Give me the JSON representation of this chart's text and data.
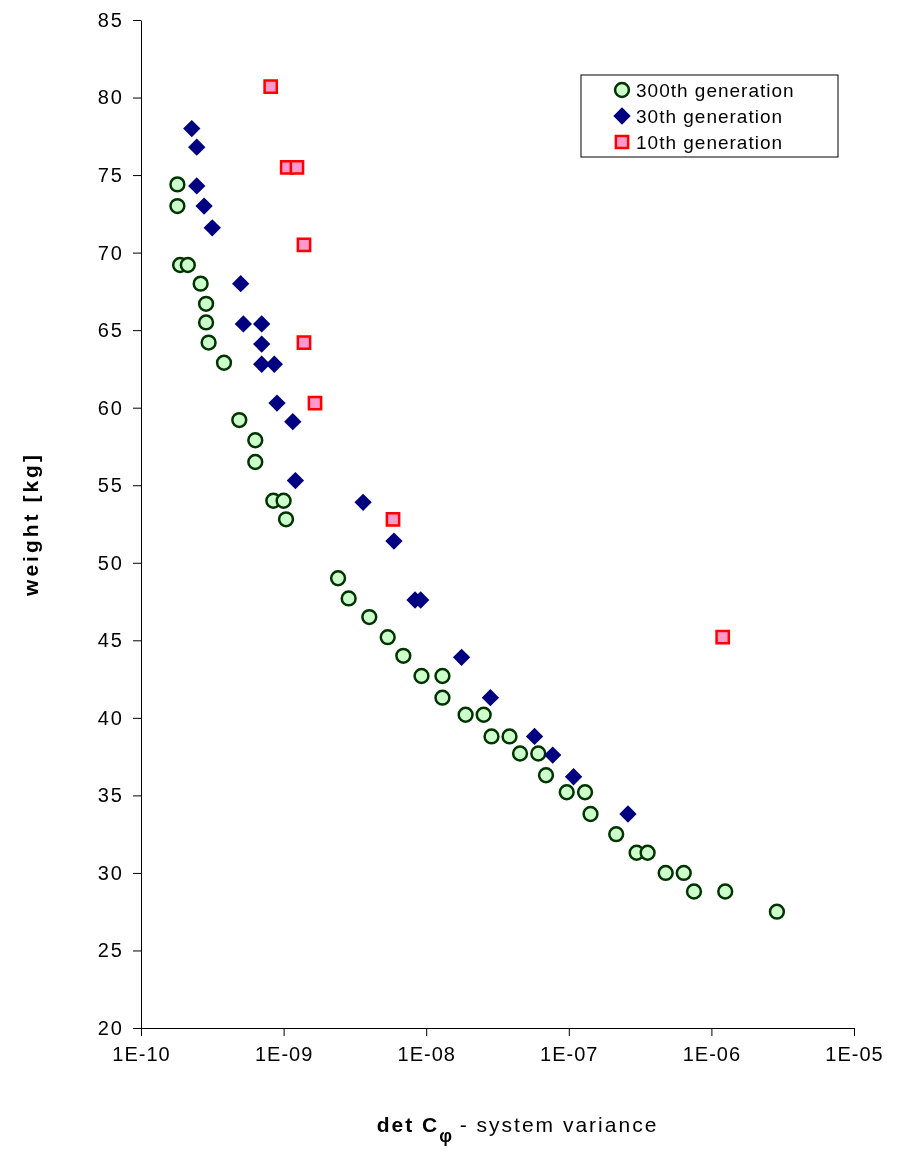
{
  "chart_data": {
    "type": "scatter",
    "xlabel": "det C$_{φ}$ - system variance",
    "ylabel": "weight [kg]",
    "log": "x",
    "xlim": [
      1e-10,
      1e-05
    ],
    "ylim": [
      20,
      85
    ],
    "xticks": [
      {
        "value": 1e-10,
        "label": "1E-10"
      },
      {
        "value": 1e-09,
        "label": "1E-09"
      },
      {
        "value": 1e-08,
        "label": "1E-08"
      },
      {
        "value": 1e-07,
        "label": "1E-07"
      },
      {
        "value": 1e-06,
        "label": "1E-06"
      },
      {
        "value": 1e-05,
        "label": "1E-05"
      }
    ],
    "yticks": [
      20,
      25,
      30,
      35,
      40,
      45,
      50,
      55,
      60,
      65,
      70,
      75,
      80,
      85
    ],
    "grid": false,
    "legend": "top right",
    "series": [
      {
        "name": "300th generation",
        "color": "#ccffcc",
        "marker": "circle",
        "x": [
          1.8e-10,
          1.8e-10,
          1.88e-10,
          2.13e-10,
          2.62e-10,
          2.86e-10,
          2.86e-10,
          2.98e-10,
          3.82e-10,
          4.89e-10,
          6.33e-10,
          6.33e-10,
          8.47e-10,
          1e-09,
          1.04e-09,
          2.41e-09,
          2.86e-09,
          3.99e-09,
          5.37e-09,
          6.91e-09,
          9.27e-09,
          1.3e-08,
          1.3e-08,
          1.89e-08,
          2.53e-08,
          2.87e-08,
          3.84e-08,
          4.55e-08,
          6.11e-08,
          6.92e-08,
          9.67e-08,
          1.3e-07,
          1.42e-07,
          2.15e-07,
          2.99e-07,
          3.57e-07,
          4.78e-07,
          6.4e-07,
          7.55e-07,
          1.25e-06,
          2.88e-06
        ],
        "values": [
          74.4,
          73.0,
          69.2,
          69.2,
          68.0,
          66.7,
          65.5,
          64.2,
          62.9,
          59.2,
          57.9,
          56.5,
          54.0,
          54.0,
          52.8,
          49.0,
          47.7,
          46.5,
          45.2,
          44.0,
          42.7,
          42.7,
          41.3,
          40.2,
          40.2,
          38.8,
          38.8,
          37.7,
          37.7,
          36.3,
          35.2,
          35.2,
          33.8,
          32.5,
          31.3,
          31.3,
          30.0,
          30.0,
          28.8,
          28.8,
          27.5
        ]
      },
      {
        "name": "30th generation",
        "color": "#000080",
        "marker": "diamond",
        "x": [
          2.27e-10,
          2.46e-10,
          2.46e-10,
          2.77e-10,
          3.16e-10,
          5e-10,
          5.22e-10,
          7.02e-10,
          7.02e-10,
          7.02e-10,
          8.61e-10,
          8.99e-10,
          1.16e-09,
          1.21e-09,
          3.61e-09,
          5.94e-09,
          8.35e-09,
          9.15e-09,
          1.77e-08,
          2.82e-08,
          5.75e-08,
          7.71e-08,
          1.08e-07,
          2.6e-07
        ],
        "values": [
          78.0,
          76.8,
          74.3,
          73.0,
          71.6,
          68.0,
          65.4,
          65.4,
          64.1,
          62.8,
          62.8,
          60.3,
          59.1,
          55.3,
          53.9,
          51.4,
          47.6,
          47.6,
          43.9,
          41.3,
          38.8,
          37.6,
          36.2,
          33.8
        ]
      },
      {
        "name": "10th generation",
        "color": "#ff99cc",
        "marker": "square",
        "x": [
          8.12e-10,
          1.06e-09,
          1.24e-09,
          1.39e-09,
          1.39e-09,
          1.66e-09,
          5.85e-09,
          1.2e-06
        ],
        "values": [
          80.7,
          75.5,
          75.5,
          70.5,
          64.2,
          60.3,
          52.8,
          45.2
        ]
      }
    ]
  }
}
